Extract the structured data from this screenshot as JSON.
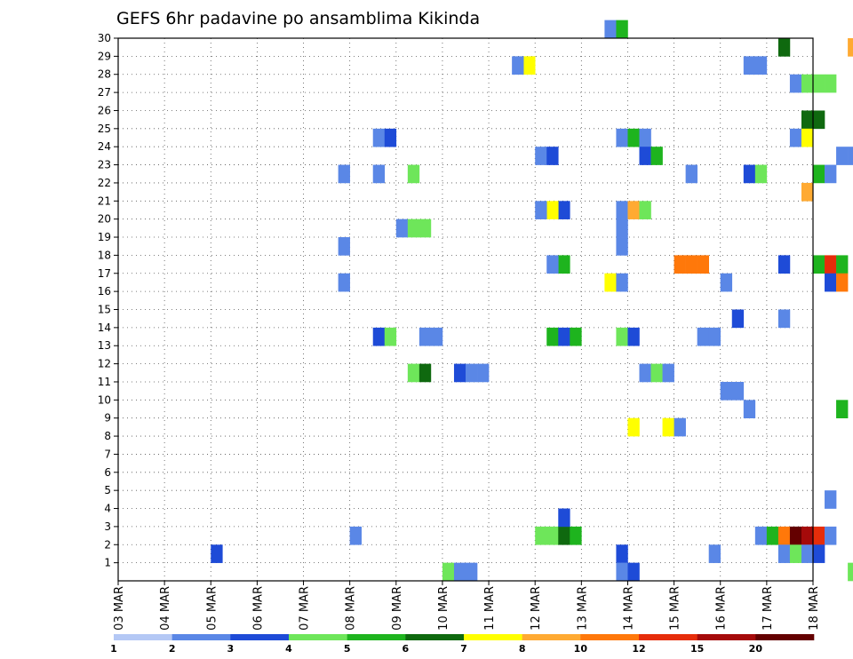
{
  "chart_data": {
    "type": "heatmap",
    "title": "GEFS 6hr padavine po ansamblima Kikinda",
    "xlabel": "",
    "ylabel": "",
    "x_tick_labels": [
      "03 MAR",
      "04 MAR",
      "05 MAR",
      "06 MAR",
      "07 MAR",
      "08 MAR",
      "09 MAR",
      "10 MAR",
      "11 MAR",
      "12 MAR",
      "13 MAR",
      "14 MAR",
      "15 MAR",
      "16 MAR",
      "17 MAR",
      "18 MAR"
    ],
    "x_range_days": [
      0,
      15
    ],
    "y_ticks": [
      1,
      2,
      3,
      4,
      5,
      6,
      7,
      8,
      9,
      10,
      11,
      12,
      13,
      14,
      15,
      16,
      17,
      18,
      19,
      20,
      21,
      22,
      23,
      24,
      25,
      26,
      27,
      28,
      29,
      30
    ],
    "y_range": [
      0,
      30
    ],
    "grid": true,
    "grid_style": "dotted",
    "colorbar": {
      "labels": [
        "1",
        "2",
        "3",
        "4",
        "5",
        "6",
        "7",
        "8",
        "10",
        "12",
        "15",
        "20"
      ],
      "colors": [
        "#b4c8f5",
        "#5a87e6",
        "#1e4bd7",
        "#6ee65a",
        "#1eb41e",
        "#0f690f",
        "#ffff00",
        "#ffaa32",
        "#ff780a",
        "#e62d0a",
        "#a50a0a",
        "#640000"
      ]
    },
    "cells": [
      [
        2.0,
        2,
        1
      ],
      [
        7.0,
        3,
        0
      ],
      [
        7.25,
        1,
        0
      ],
      [
        7.5,
        1,
        0
      ],
      [
        8.75,
        6,
        28
      ],
      [
        8.5,
        1,
        28
      ],
      [
        9.5,
        2,
        20
      ],
      [
        9.25,
        6,
        20
      ],
      [
        9.0,
        1,
        20
      ],
      [
        9.0,
        1,
        23
      ],
      [
        9.25,
        2,
        23
      ],
      [
        9.25,
        4,
        13
      ],
      [
        9.5,
        2,
        13
      ],
      [
        9.75,
        4,
        13
      ],
      [
        9.5,
        4,
        17
      ],
      [
        9.25,
        1,
        17
      ],
      [
        9.25,
        3,
        2
      ],
      [
        9.0,
        3,
        2
      ],
      [
        9.5,
        5,
        2
      ],
      [
        9.75,
        4,
        2
      ],
      [
        9.5,
        2,
        3
      ],
      [
        4.75,
        1,
        16
      ],
      [
        4.75,
        1,
        22
      ],
      [
        4.75,
        1,
        18
      ],
      [
        5.0,
        1,
        2
      ],
      [
        5.5,
        2,
        13
      ],
      [
        5.75,
        3,
        13
      ],
      [
        5.5,
        1,
        24
      ],
      [
        5.75,
        2,
        24
      ],
      [
        5.5,
        1,
        22
      ],
      [
        6.25,
        3,
        22
      ],
      [
        6.0,
        1,
        19
      ],
      [
        6.25,
        3,
        19
      ],
      [
        6.5,
        3,
        19
      ],
      [
        6.25,
        3,
        11
      ],
      [
        6.5,
        5,
        11
      ],
      [
        6.5,
        1,
        13
      ],
      [
        6.75,
        1,
        13
      ],
      [
        7.25,
        2,
        11
      ],
      [
        7.5,
        1,
        11
      ],
      [
        7.75,
        1,
        11
      ],
      [
        10.5,
        1,
        30
      ],
      [
        10.75,
        4,
        30
      ],
      [
        10.75,
        1,
        24
      ],
      [
        11.0,
        4,
        24
      ],
      [
        11.25,
        1,
        24
      ],
      [
        10.75,
        1,
        20
      ],
      [
        11.0,
        7,
        20
      ],
      [
        11.25,
        3,
        20
      ],
      [
        10.75,
        1,
        19
      ],
      [
        10.75,
        1,
        18
      ],
      [
        10.5,
        6,
        16
      ],
      [
        10.75,
        1,
        16
      ],
      [
        10.75,
        3,
        13
      ],
      [
        11.0,
        2,
        13
      ],
      [
        11.0,
        6,
        8
      ],
      [
        11.25,
        2,
        23
      ],
      [
        11.5,
        4,
        23
      ],
      [
        11.25,
        1,
        11
      ],
      [
        11.5,
        3,
        11
      ],
      [
        11.75,
        1,
        11
      ],
      [
        11.75,
        6,
        8
      ],
      [
        12.0,
        1,
        8
      ],
      [
        10.75,
        2,
        1
      ],
      [
        10.75,
        1,
        0
      ],
      [
        11.0,
        2,
        0
      ],
      [
        12.0,
        8,
        17
      ],
      [
        12.25,
        8,
        17
      ],
      [
        12.5,
        8,
        17
      ],
      [
        12.25,
        1,
        22
      ],
      [
        12.5,
        1,
        13
      ],
      [
        12.75,
        1,
        13
      ],
      [
        13.0,
        1,
        16
      ],
      [
        12.75,
        1,
        1
      ],
      [
        13.0,
        1,
        10
      ],
      [
        13.25,
        1,
        10
      ],
      [
        13.25,
        2,
        14
      ],
      [
        13.5,
        1,
        9
      ],
      [
        13.5,
        1,
        28
      ],
      [
        13.75,
        1,
        28
      ],
      [
        13.5,
        2,
        22
      ],
      [
        13.75,
        3,
        22
      ],
      [
        13.75,
        1,
        2
      ],
      [
        14.25,
        5,
        29
      ],
      [
        14.25,
        2,
        17
      ],
      [
        14.25,
        1,
        14
      ],
      [
        14.5,
        1,
        27
      ],
      [
        14.75,
        3,
        27
      ],
      [
        15.0,
        3,
        27
      ],
      [
        15.25,
        3,
        27
      ],
      [
        14.75,
        5,
        25
      ],
      [
        15.0,
        5,
        25
      ],
      [
        14.5,
        1,
        24
      ],
      [
        14.75,
        6,
        24
      ],
      [
        14.75,
        7,
        21
      ],
      [
        15.0,
        4,
        22
      ],
      [
        15.25,
        1,
        22
      ],
      [
        15.5,
        1,
        23
      ],
      [
        15.75,
        1,
        23
      ],
      [
        15.0,
        4,
        17
      ],
      [
        15.25,
        9,
        17
      ],
      [
        15.5,
        4,
        17
      ],
      [
        15.25,
        2,
        16
      ],
      [
        15.5,
        8,
        16
      ],
      [
        15.25,
        1,
        4
      ],
      [
        15.5,
        4,
        9
      ],
      [
        14.0,
        4,
        2
      ],
      [
        14.25,
        8,
        2
      ],
      [
        14.5,
        11,
        2
      ],
      [
        14.75,
        10,
        2
      ],
      [
        15.0,
        9,
        2
      ],
      [
        15.25,
        1,
        2
      ],
      [
        14.25,
        1,
        1
      ],
      [
        14.5,
        3,
        1
      ],
      [
        14.75,
        1,
        1
      ],
      [
        15.0,
        2,
        1
      ],
      [
        15.75,
        7,
        29
      ],
      [
        15.75,
        3,
        0
      ]
    ]
  }
}
